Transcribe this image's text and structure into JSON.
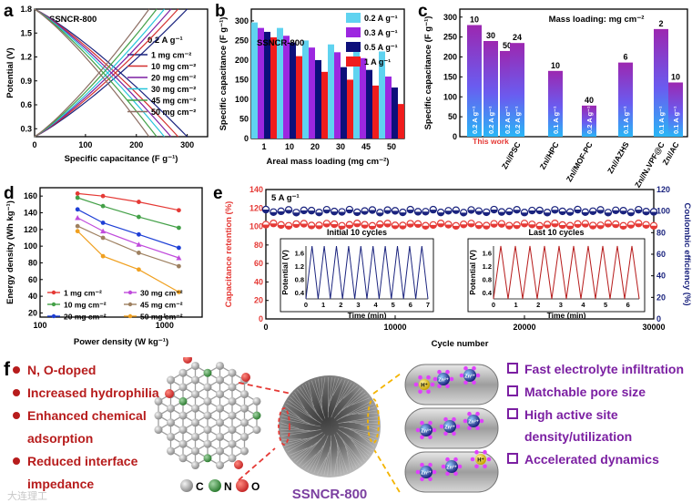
{
  "panel_letters": {
    "a": "a",
    "b": "b",
    "c": "c",
    "d": "d",
    "e": "e",
    "f": "f"
  },
  "chart_data": [
    {
      "id": "a",
      "type": "line",
      "title": "SSNCR-800",
      "subtitle": "0.2 A g⁻¹",
      "xlabel": "Specific capacitance (F g⁻¹)",
      "ylabel": "Potential (V)",
      "xlim": [
        0,
        340
      ],
      "ylim": [
        0.2,
        1.8
      ],
      "xticks": [
        "0",
        "100",
        "200",
        "300"
      ],
      "yticks": [
        "0.3",
        "0.6",
        "0.9",
        "1.2",
        "1.5",
        "1.8"
      ],
      "series": [
        {
          "name": "1 mg cm⁻²",
          "color": "#1a237e",
          "capacity": 300
        },
        {
          "name": "10 mg cm⁻²",
          "color": "#d32f2f",
          "capacity": 282
        },
        {
          "name": "20 mg cm⁻²",
          "color": "#7b1fa2",
          "capacity": 268
        },
        {
          "name": "30 mg cm⁻²",
          "color": "#26c6da",
          "capacity": 255
        },
        {
          "name": "45 mg cm⁻²",
          "color": "#43a047",
          "capacity": 240
        },
        {
          "name": "50 mg cm⁻²",
          "color": "#8d6e63",
          "capacity": 225
        }
      ]
    },
    {
      "id": "b",
      "type": "bar",
      "title": "SSNCR-800",
      "xlabel": "Areal mass loading (mg cm⁻²)",
      "ylabel": "Specific capacitance (F g⁻¹)",
      "categories": [
        "1",
        "10",
        "20",
        "30",
        "45",
        "50"
      ],
      "ylim": [
        0,
        330
      ],
      "yticks": [
        "0",
        "50",
        "100",
        "150",
        "200",
        "250",
        "300"
      ],
      "series": [
        {
          "name": "0.2 A g⁻¹",
          "color": "#5fd3f0",
          "values": [
            296,
            282,
            250,
            240,
            228,
            222
          ]
        },
        {
          "name": "0.3 A g⁻¹",
          "color": "#9c27e0",
          "values": [
            282,
            262,
            232,
            220,
            205,
            158
          ]
        },
        {
          "name": "0.5 A g⁻¹",
          "color": "#0d0f7a",
          "values": [
            272,
            245,
            200,
            182,
            175,
            130
          ]
        },
        {
          "name": "1 A g⁻¹",
          "color": "#f01c1c",
          "values": [
            258,
            210,
            170,
            150,
            135,
            88
          ]
        }
      ]
    },
    {
      "id": "c",
      "type": "bar",
      "title": "Mass loading: mg cm⁻²",
      "ylabel": "Specific capacitance (F g⁻¹)",
      "ylim": [
        0,
        320
      ],
      "yticks": [
        "0",
        "50",
        "100",
        "150",
        "200",
        "250",
        "300"
      ],
      "groups": [
        {
          "label": "This work",
          "bars": [
            {
              "value": 280,
              "loading": "10",
              "rate": "0.2 A g⁻¹"
            },
            {
              "value": 240,
              "loading": "30",
              "rate": "0.2 A g⁻¹"
            },
            {
              "value": 215,
              "loading": "50",
              "rate": "0.2 A g⁻¹"
            }
          ]
        },
        {
          "label": "Zn//PSC",
          "bars": [
            {
              "value": 235,
              "loading": "24",
              "rate": "0.2 A g⁻¹"
            }
          ]
        },
        {
          "label": "Zn//HPC",
          "bars": [
            {
              "value": 165,
              "loading": "10",
              "rate": "0.1 A g⁻¹"
            }
          ]
        },
        {
          "label": "Zn//MOF-PC",
          "bars": [
            {
              "value": 78,
              "loading": "40",
              "rate": "0.2 A g⁻¹"
            }
          ]
        },
        {
          "label": "Zn//AZHS",
          "bars": [
            {
              "value": 186,
              "loading": "6",
              "rate": "0.1 A g⁻¹"
            }
          ]
        },
        {
          "label": "Zn//N₃VPF@C",
          "bars": [
            {
              "value": 270,
              "loading": "2",
              "rate": "0.1 A g⁻¹"
            }
          ]
        },
        {
          "label": "Zn//AC",
          "bars": [
            {
              "value": 136,
              "loading": "10",
              "rate": "0.1 A g⁻¹"
            }
          ]
        }
      ]
    },
    {
      "id": "d",
      "type": "line",
      "xscale": "log",
      "xlabel": "Power density (W kg⁻¹)",
      "ylabel": "Energy density (Wh kg⁻¹)",
      "xlim": [
        100,
        2000
      ],
      "ylim": [
        15,
        170
      ],
      "xticks": [
        "100",
        "1000"
      ],
      "yticks": [
        "20",
        "40",
        "60",
        "80",
        "100",
        "120",
        "140",
        "160"
      ],
      "series": [
        {
          "name": "1 mg cm⁻²",
          "color": "#e53935",
          "marker": "circle",
          "x": [
            200,
            320,
            620,
            1300
          ],
          "y": [
            163,
            160,
            153,
            143
          ]
        },
        {
          "name": "10 mg cm⁻²",
          "color": "#43a047",
          "marker": "circle",
          "x": [
            200,
            320,
            620,
            1300
          ],
          "y": [
            158,
            148,
            135,
            122
          ]
        },
        {
          "name": "20 mg cm⁻²",
          "color": "#1e3fd6",
          "marker": "circle",
          "x": [
            200,
            320,
            620,
            1300
          ],
          "y": [
            144,
            128,
            114,
            98
          ]
        },
        {
          "name": "30 mg cm⁻²",
          "color": "#c04bdc",
          "marker": "triangle",
          "x": [
            200,
            320,
            620,
            1300
          ],
          "y": [
            134,
            118,
            102,
            86
          ]
        },
        {
          "name": "45 mg cm⁻²",
          "color": "#9e8060",
          "marker": "circle",
          "x": [
            200,
            320,
            620,
            1300
          ],
          "y": [
            124,
            110,
            92,
            76
          ]
        },
        {
          "name": "50 mg cm⁻²",
          "color": "#f0a020",
          "marker": "circle",
          "x": [
            200,
            320,
            620,
            1300
          ],
          "y": [
            118,
            88,
            72,
            45
          ]
        }
      ]
    },
    {
      "id": "e",
      "type": "scatter",
      "title": "5 A g⁻¹",
      "xlabel": "Cycle number",
      "ylabel": "Capacitance retention (%)",
      "y2label": "Coulombic efficiency (%)",
      "xlim": [
        0,
        30000
      ],
      "ylim": [
        0,
        140
      ],
      "y2lim": [
        0,
        120
      ],
      "xticks": [
        "0",
        "10000",
        "20000",
        "30000"
      ],
      "yticks": [
        "0",
        "20",
        "40",
        "60",
        "80",
        "100",
        "120",
        "140"
      ],
      "y2ticks": [
        "0",
        "20",
        "40",
        "60",
        "80",
        "100",
        "120"
      ],
      "retention_level": 102,
      "efficiency_level": 100,
      "insets": [
        {
          "title": "Initial 10 cycles",
          "xlabel": "Time (min)",
          "ylabel": "Potential (V)",
          "xticks": [
            "0",
            "1",
            "2",
            "3",
            "4",
            "5",
            "6",
            "7"
          ],
          "yticks": [
            "0.4",
            "0.8",
            "1.2",
            "1.6"
          ],
          "xmax": 7,
          "cycles": 10,
          "color": "#1a237e"
        },
        {
          "title": "Last 10 cycles",
          "xlabel": "Time (min)",
          "ylabel": "Potential (V)",
          "xticks": [
            "0",
            "1",
            "2",
            "3",
            "4",
            "5",
            "6"
          ],
          "yticks": [
            "0.4",
            "0.8",
            "1.2",
            "1.6"
          ],
          "xmax": 6.5,
          "cycles": 10,
          "color": "#b71c1c"
        }
      ]
    }
  ],
  "panel_f": {
    "features": [
      "N, O-doped",
      "Increased hydrophilia",
      "Enhanced chemical",
      "adsorption",
      "Reduced interface",
      "impedance"
    ],
    "legend": {
      "c": "C",
      "n": "N",
      "o": "O"
    },
    "material": "SSNCR-800",
    "benefits": [
      "Fast electrolyte infiltration",
      "Matchable pore size",
      "High active site",
      "density/utilization",
      "Accelerated dynamics"
    ],
    "ion_zn": "Zn²⁺",
    "ion_h": "H⁺",
    "watermark": "大连理工"
  }
}
